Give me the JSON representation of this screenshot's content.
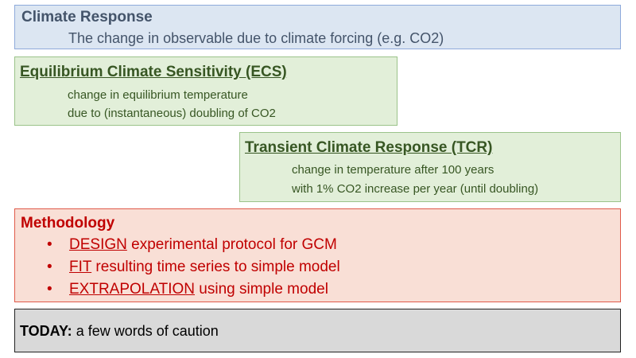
{
  "climate_response": {
    "title": "Climate Response",
    "description": "The change in observable due to climate forcing (e.g. CO2)"
  },
  "ecs": {
    "title": "Equilibrium Climate Sensitivity (ECS)",
    "line1": "change in equilibrium temperature",
    "line2": "due to (instantaneous) doubling of CO2"
  },
  "tcr": {
    "title": "Transient Climate Response (TCR)",
    "line1": "change in temperature after 100 years",
    "line2": "with 1% CO2 increase per year (until doubling)"
  },
  "methodology": {
    "title": "Methodology",
    "bullet_glyph": "•",
    "items": [
      {
        "keyword": "DESIGN",
        "text": " experimental protocol for GCM"
      },
      {
        "keyword": "FIT",
        "text": " resulting time series to simple model"
      },
      {
        "keyword": "EXTRAPOLATION",
        "text": " using simple model"
      }
    ]
  },
  "today": {
    "label": "TODAY:",
    "text": " a few words of caution"
  },
  "colors": {
    "blue_fill": "#dce6f2",
    "blue_border": "#8eaadb",
    "green_fill": "#e2efd9",
    "green_border": "#9bc38a",
    "red_fill": "#f9dfd6",
    "red_border": "#e05a4a",
    "gray_fill": "#d9d9d9",
    "red_text": "#c00000",
    "green_text": "#375623",
    "blue_text": "#44546a"
  }
}
